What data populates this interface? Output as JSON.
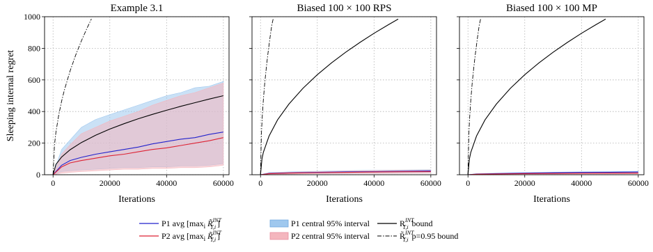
{
  "chart_data": [
    {
      "type": "line",
      "title": "Example 3.1",
      "xlabel": "Iterations",
      "ylabel": "Sleeping internal regret",
      "xlim": [
        -3000,
        62000
      ],
      "ylim": [
        0,
        1000
      ],
      "xticks": [
        0,
        20000,
        40000,
        60000
      ],
      "yticks": [
        0,
        200,
        400,
        600,
        800,
        1000
      ],
      "grid": true,
      "series": [
        {
          "name": "P1 avg",
          "color": "#2222cc",
          "x": [
            0,
            3000,
            6000,
            10000,
            15000,
            20000,
            25000,
            30000,
            35000,
            40000,
            45000,
            50000,
            55000,
            60000
          ],
          "values": [
            0,
            60,
            90,
            110,
            130,
            145,
            160,
            175,
            195,
            210,
            225,
            235,
            255,
            270
          ]
        },
        {
          "name": "P2 avg",
          "color": "#dd2233",
          "x": [
            0,
            3000,
            6000,
            10000,
            15000,
            20000,
            25000,
            30000,
            35000,
            40000,
            45000,
            50000,
            55000,
            60000
          ],
          "values": [
            0,
            50,
            75,
            90,
            105,
            120,
            130,
            145,
            160,
            170,
            185,
            200,
            215,
            235
          ]
        },
        {
          "name": "P1 central 95% interval",
          "color": "#9fc8ee",
          "x": [
            0,
            3000,
            6000,
            10000,
            15000,
            20000,
            25000,
            30000,
            35000,
            40000,
            45000,
            50000,
            55000,
            60000
          ],
          "lower": [
            0,
            20,
            25,
            30,
            35,
            40,
            45,
            45,
            50,
            50,
            55,
            55,
            60,
            70
          ],
          "upper": [
            0,
            160,
            220,
            300,
            350,
            380,
            410,
            440,
            470,
            500,
            520,
            550,
            560,
            590
          ]
        },
        {
          "name": "P2 central 95% interval",
          "color": "#f4b6be",
          "x": [
            0,
            3000,
            6000,
            10000,
            15000,
            20000,
            25000,
            30000,
            35000,
            40000,
            45000,
            50000,
            55000,
            60000
          ],
          "lower": [
            0,
            10,
            15,
            20,
            25,
            30,
            35,
            35,
            40,
            40,
            45,
            45,
            50,
            60
          ],
          "upper": [
            0,
            130,
            190,
            260,
            300,
            340,
            370,
            400,
            440,
            470,
            500,
            520,
            550,
            580
          ]
        },
        {
          "name": "bound",
          "color": "#000000",
          "x": [
            0,
            1000,
            3000,
            6000,
            10000,
            15000,
            20000,
            25000,
            30000,
            35000,
            40000,
            45000,
            50000,
            55000,
            60000
          ],
          "values": [
            0,
            65,
            112,
            158,
            204,
            250,
            289,
            323,
            354,
            382,
            408,
            433,
            456,
            479,
            500
          ]
        },
        {
          "name": "p=0.95 bound",
          "color": "#000000",
          "dash": true,
          "x": [
            0,
            500,
            1000,
            2000,
            3000,
            4000,
            6000,
            8000,
            10000,
            12000,
            13500
          ],
          "values": [
            0,
            190,
            268,
            379,
            465,
            536,
            657,
            758,
            848,
            929,
            986
          ]
        }
      ]
    },
    {
      "type": "line",
      "title": "Biased 100 × 100 RPS",
      "xlabel": "Iterations",
      "ylabel": "",
      "xlim": [
        -3000,
        62000
      ],
      "ylim": [
        0,
        1000
      ],
      "xticks": [
        0,
        20000,
        40000,
        60000
      ],
      "yticks": [
        0,
        200,
        400,
        600,
        800,
        1000
      ],
      "grid": true,
      "series": [
        {
          "name": "P1 avg",
          "color": "#2222cc",
          "x": [
            0,
            3000,
            10000,
            20000,
            30000,
            40000,
            50000,
            60000
          ],
          "values": [
            0,
            8,
            12,
            15,
            18,
            20,
            22,
            24
          ]
        },
        {
          "name": "P2 avg",
          "color": "#dd2233",
          "x": [
            0,
            3000,
            10000,
            20000,
            30000,
            40000,
            50000,
            60000
          ],
          "values": [
            0,
            6,
            10,
            13,
            15,
            17,
            19,
            20
          ]
        },
        {
          "name": "P1 central 95% interval",
          "color": "#9fc8ee",
          "x": [
            0,
            3000,
            10000,
            20000,
            30000,
            40000,
            50000,
            60000
          ],
          "lower": [
            0,
            3,
            5,
            7,
            8,
            9,
            10,
            11
          ],
          "upper": [
            0,
            14,
            18,
            22,
            25,
            28,
            30,
            32
          ]
        },
        {
          "name": "P2 central 95% interval",
          "color": "#f4b6be",
          "x": [
            0,
            3000,
            10000,
            20000,
            30000,
            40000,
            50000,
            60000
          ],
          "lower": [
            0,
            2,
            4,
            6,
            7,
            8,
            9,
            10
          ],
          "upper": [
            0,
            12,
            16,
            20,
            23,
            26,
            28,
            30
          ]
        },
        {
          "name": "bound",
          "color": "#000000",
          "x": [
            0,
            500,
            1000,
            3000,
            6000,
            10000,
            15000,
            20000,
            25000,
            30000,
            35000,
            40000,
            45000,
            48500
          ],
          "values": [
            0,
            100,
            142,
            245,
            347,
            447,
            548,
            633,
            708,
            775,
            837,
            895,
            949,
            985
          ]
        },
        {
          "name": "p=0.95 bound",
          "color": "#000000",
          "dash": true,
          "x": [
            0,
            300,
            600,
            1000,
            1500,
            2000,
            2500,
            3000,
            3500,
            4000,
            4500
          ],
          "values": [
            0,
            260,
            367,
            474,
            581,
            671,
            750,
            822,
            888,
            949,
            990
          ]
        }
      ]
    },
    {
      "type": "line",
      "title": "Biased 100 × 100 MP",
      "xlabel": "Iterations",
      "ylabel": "",
      "xlim": [
        -3000,
        62000
      ],
      "ylim": [
        0,
        1000
      ],
      "xticks": [
        0,
        20000,
        40000,
        60000
      ],
      "yticks": [
        0,
        200,
        400,
        600,
        800,
        1000
      ],
      "grid": true,
      "series": [
        {
          "name": "P1 avg",
          "color": "#2222cc",
          "x": [
            0,
            3000,
            10000,
            20000,
            30000,
            40000,
            50000,
            60000
          ],
          "values": [
            0,
            4,
            7,
            10,
            13,
            15,
            16,
            17
          ]
        },
        {
          "name": "P2 avg",
          "color": "#dd2233",
          "x": [
            0,
            3000,
            10000,
            20000,
            30000,
            40000,
            50000,
            60000
          ],
          "values": [
            0,
            3,
            5,
            7,
            8,
            9,
            10,
            10
          ]
        },
        {
          "name": "P1 central 95% interval",
          "color": "#9fc8ee",
          "x": [
            0,
            3000,
            10000,
            20000,
            30000,
            40000,
            50000,
            60000
          ],
          "lower": [
            0,
            1,
            3,
            4,
            5,
            6,
            7,
            8
          ],
          "upper": [
            0,
            7,
            10,
            13,
            16,
            18,
            20,
            22
          ]
        },
        {
          "name": "P2 central 95% interval",
          "color": "#f4b6be",
          "x": [
            0,
            3000,
            10000,
            20000,
            30000,
            40000,
            50000,
            60000
          ],
          "lower": [
            0,
            1,
            2,
            3,
            4,
            5,
            5,
            6
          ],
          "upper": [
            0,
            6,
            8,
            10,
            12,
            13,
            14,
            15
          ]
        },
        {
          "name": "bound",
          "color": "#000000",
          "x": [
            0,
            500,
            1000,
            3000,
            6000,
            10000,
            15000,
            20000,
            25000,
            30000,
            35000,
            40000,
            45000,
            48500
          ],
          "values": [
            0,
            100,
            142,
            245,
            347,
            447,
            548,
            633,
            708,
            775,
            837,
            895,
            949,
            985
          ]
        },
        {
          "name": "p=0.95 bound",
          "color": "#000000",
          "dash": true,
          "x": [
            0,
            300,
            600,
            1000,
            1500,
            2000,
            2500,
            3000,
            3500,
            4000,
            4500
          ],
          "values": [
            0,
            260,
            367,
            474,
            581,
            671,
            750,
            822,
            888,
            949,
            990
          ]
        }
      ]
    }
  ],
  "legend": {
    "placement": "bottom",
    "items": [
      {
        "kind": "line",
        "color": "#2222cc",
        "label_main": "P1 avg [max",
        "label_sub": "i",
        "label_rest": " R̃",
        "label_sup": "INT",
        "label_sub2": "T,i",
        "label_end": "]"
      },
      {
        "kind": "line",
        "color": "#dd2233",
        "label_main": "P2 avg [max",
        "label_sub": "i",
        "label_rest": " R̃",
        "label_sup": "INT",
        "label_sub2": "T,i",
        "label_end": "]"
      },
      {
        "kind": "patch",
        "color": "#9fc8ee",
        "edge": "#6fa8de",
        "label": "P1 central 95% interval"
      },
      {
        "kind": "patch",
        "color": "#f4b6be",
        "edge": "#e890a0",
        "label": "P2 central 95% interval"
      },
      {
        "kind": "line",
        "color": "#000000",
        "label_main": "R",
        "label_sup": "INT",
        "label_sub2": "T,i",
        "label_end": " bound"
      },
      {
        "kind": "dash",
        "color": "#000000",
        "label_main": "R̃",
        "label_sup": "INT",
        "label_sub2": "T,i",
        "label_end": " p=0.95 bound"
      }
    ]
  }
}
